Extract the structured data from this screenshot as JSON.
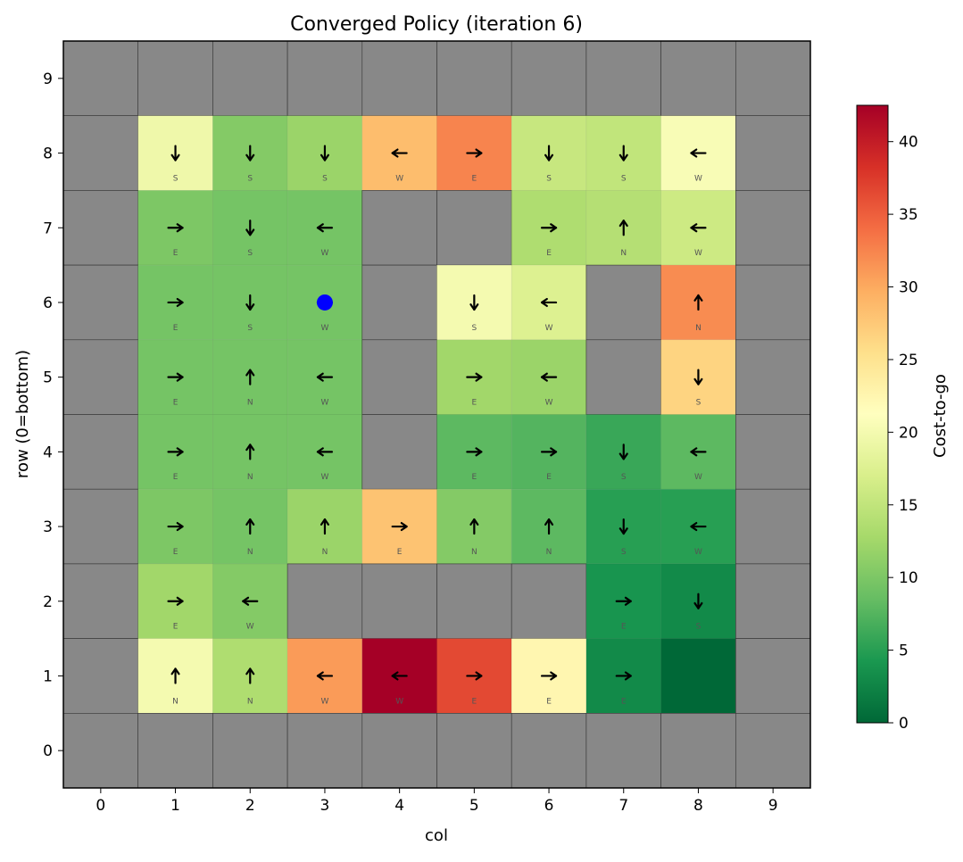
{
  "chart_data": {
    "type": "heatmap",
    "title": "Converged Policy (iteration 6)",
    "xlabel": "col",
    "ylabel": "row (0=bottom)",
    "x_ticks": [
      "0",
      "1",
      "2",
      "3",
      "4",
      "5",
      "6",
      "7",
      "8",
      "9"
    ],
    "y_ticks": [
      "0",
      "1",
      "2",
      "3",
      "4",
      "5",
      "6",
      "7",
      "8",
      "9"
    ],
    "xlim": [
      -0.5,
      9.5
    ],
    "ylim": [
      -0.5,
      9.5
    ],
    "grid": false,
    "colorbar": {
      "label": "Cost-to-go",
      "range": [
        0,
        42.5
      ],
      "ticks": [
        "0",
        "5",
        "10",
        "15",
        "20",
        "25",
        "30",
        "35",
        "40"
      ],
      "colormap": "RdYlGn_r"
    },
    "wall_color": "#888888",
    "agent": {
      "row": 6,
      "col": 3,
      "color": "#0000ff"
    },
    "rows_top_to_bottom": [
      [
        null,
        null,
        null,
        null,
        null,
        null,
        null,
        null,
        null,
        null
      ],
      [
        null,
        [
          19.5,
          "S"
        ],
        [
          10.5,
          "S"
        ],
        [
          12.0,
          "S"
        ],
        [
          28.5,
          "W"
        ],
        [
          32.5,
          "E"
        ],
        [
          15.5,
          "S"
        ],
        [
          15.0,
          "S"
        ],
        [
          20.5,
          "W"
        ],
        null
      ],
      [
        null,
        [
          10.0,
          "E"
        ],
        [
          9.5,
          "S"
        ],
        [
          9.5,
          "W"
        ],
        null,
        null,
        [
          13.5,
          "E"
        ],
        [
          14.0,
          "N"
        ],
        [
          16.0,
          "W"
        ],
        null
      ],
      [
        null,
        [
          9.5,
          "E"
        ],
        [
          9.5,
          "S"
        ],
        [
          9.5,
          "W"
        ],
        null,
        [
          20.0,
          "S"
        ],
        [
          17.5,
          "W"
        ],
        null,
        [
          32.0,
          "N"
        ],
        null
      ],
      [
        null,
        [
          9.5,
          "E"
        ],
        [
          9.5,
          "N"
        ],
        [
          9.5,
          "W"
        ],
        null,
        [
          12.5,
          "E"
        ],
        [
          12.0,
          "W"
        ],
        null,
        [
          26.5,
          "S"
        ],
        null
      ],
      [
        null,
        [
          9.5,
          "E"
        ],
        [
          9.5,
          "N"
        ],
        [
          9.5,
          "W"
        ],
        null,
        [
          8.0,
          "E"
        ],
        [
          7.5,
          "E"
        ],
        [
          6.0,
          "S"
        ],
        [
          8.0,
          "W"
        ],
        null
      ],
      [
        null,
        [
          10.0,
          "E"
        ],
        [
          9.5,
          "N"
        ],
        [
          12.0,
          "N"
        ],
        [
          28.0,
          "E"
        ],
        [
          10.5,
          "N"
        ],
        [
          8.0,
          "N"
        ],
        [
          5.0,
          "S"
        ],
        [
          5.0,
          "W"
        ],
        null
      ],
      [
        null,
        [
          12.5,
          "E"
        ],
        [
          10.5,
          "W"
        ],
        null,
        null,
        null,
        null,
        [
          4.0,
          "E"
        ],
        [
          3.0,
          "S"
        ],
        null
      ],
      [
        null,
        [
          20.0,
          "N"
        ],
        [
          13.5,
          "N"
        ],
        [
          31.0,
          "W"
        ],
        [
          42.5,
          "W"
        ],
        [
          36.5,
          "E"
        ],
        [
          22.5,
          "E"
        ],
        [
          3.0,
          "E"
        ],
        [
          0.0,
          null
        ],
        null
      ],
      [
        null,
        null,
        null,
        null,
        null,
        null,
        null,
        null,
        null,
        null
      ]
    ]
  }
}
